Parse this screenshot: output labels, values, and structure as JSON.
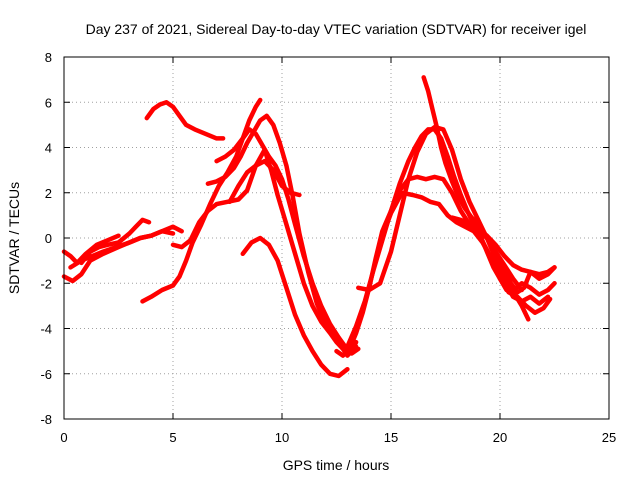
{
  "chart_data": {
    "type": "scatter",
    "title": "Day 237 of 2021, Sidereal Day-to-day VTEC variation (SDTVAR) for receiver igel",
    "xlabel": "GPS time / hours",
    "ylabel": "SDTVAR / TECUs",
    "xlim": [
      0,
      25
    ],
    "ylim": [
      -8,
      8
    ],
    "xticks": [
      0,
      5,
      10,
      15,
      20,
      25
    ],
    "yticks": [
      -8,
      -6,
      -4,
      -2,
      0,
      2,
      4,
      6,
      8
    ],
    "xtick_labels": [
      "0",
      "5",
      "10",
      "15",
      "20",
      "25"
    ],
    "ytick_labels": [
      "-8",
      "-6",
      "-4",
      "-2",
      "0",
      "2",
      "4",
      "6",
      "8"
    ],
    "grid": true,
    "marker_color": "#ff0000",
    "series": [
      {
        "name": "track-1",
        "x": [
          0.0,
          0.3,
          0.6,
          1.0,
          1.5,
          2.0,
          2.5
        ],
        "y": [
          -0.6,
          -0.8,
          -1.1,
          -0.7,
          -0.3,
          -0.1,
          0.1
        ]
      },
      {
        "name": "track-2",
        "x": [
          0.0,
          0.4,
          0.8,
          1.2,
          1.8,
          2.5,
          3.0,
          3.5,
          4.0,
          4.5,
          5.0,
          5.4
        ],
        "y": [
          -1.7,
          -1.9,
          -1.6,
          -1.0,
          -0.7,
          -0.4,
          -0.2,
          0.0,
          0.1,
          0.3,
          0.5,
          0.3
        ]
      },
      {
        "name": "track-3",
        "x": [
          0.8,
          1.2,
          1.6,
          2.0,
          2.5,
          3.0,
          3.3,
          3.6,
          3.9
        ],
        "y": [
          -1.1,
          -0.6,
          -0.4,
          -0.3,
          -0.2,
          0.2,
          0.5,
          0.8,
          0.7
        ]
      },
      {
        "name": "track-4",
        "x": [
          0.3,
          0.8,
          1.3,
          1.8,
          2.4,
          3.0,
          3.5,
          4.0,
          4.5,
          5.0
        ],
        "y": [
          -1.3,
          -1.0,
          -0.8,
          -0.6,
          -0.4,
          -0.2,
          0.0,
          0.1,
          0.3,
          0.2
        ]
      },
      {
        "name": "track-5",
        "x": [
          3.8,
          4.1,
          4.4,
          4.7,
          5.0,
          5.3,
          5.6,
          6.0,
          6.5,
          7.0,
          7.3
        ],
        "y": [
          5.3,
          5.7,
          5.9,
          6.0,
          5.8,
          5.4,
          5.0,
          4.8,
          4.6,
          4.4,
          4.4
        ]
      },
      {
        "name": "track-6",
        "x": [
          3.6,
          4.0,
          4.5,
          5.0,
          5.3,
          5.6,
          5.9,
          6.3,
          6.7,
          7.1,
          7.5,
          7.9,
          8.2,
          8.5,
          8.8,
          9.0
        ],
        "y": [
          -2.8,
          -2.6,
          -2.3,
          -2.1,
          -1.7,
          -1.0,
          -0.2,
          0.6,
          1.5,
          2.3,
          2.9,
          3.6,
          4.4,
          5.2,
          5.8,
          6.1
        ]
      },
      {
        "name": "track-7",
        "x": [
          5.0,
          5.4,
          5.8,
          6.2,
          6.6,
          7.0,
          7.5,
          8.0,
          8.4,
          8.8,
          9.2,
          9.5,
          9.8,
          10.2,
          10.6,
          11.0,
          11.4,
          11.8,
          12.2,
          12.5,
          12.8,
          13.0,
          13.2,
          13.4
        ],
        "y": [
          -0.3,
          -0.4,
          -0.1,
          0.7,
          1.2,
          1.5,
          1.6,
          1.7,
          2.1,
          3.2,
          3.9,
          3.0,
          1.9,
          0.6,
          -0.7,
          -2.0,
          -3.0,
          -3.7,
          -4.2,
          -4.6,
          -4.9,
          -5.2,
          -5.0,
          -4.6
        ]
      },
      {
        "name": "track-8",
        "x": [
          6.6,
          7.0,
          7.4,
          7.8,
          8.1,
          8.4,
          8.7,
          9.0,
          9.3,
          9.6,
          9.9,
          10.2,
          10.5,
          10.8,
          11.2,
          11.6,
          12.0,
          12.4,
          12.8,
          13.1,
          13.4
        ],
        "y": [
          2.4,
          2.5,
          2.7,
          3.1,
          3.6,
          4.2,
          4.7,
          5.2,
          5.4,
          5.0,
          4.2,
          3.2,
          1.8,
          0.2,
          -1.5,
          -2.9,
          -3.8,
          -4.4,
          -4.9,
          -5.0,
          -4.8
        ]
      },
      {
        "name": "track-9",
        "x": [
          7.0,
          7.4,
          7.8,
          8.2,
          8.5,
          8.8,
          9.1,
          9.4,
          9.7,
          10.0,
          10.3,
          10.6,
          11.0,
          11.4,
          11.8,
          12.2,
          12.6,
          12.9,
          13.2,
          13.5
        ],
        "y": [
          3.4,
          3.6,
          3.9,
          4.4,
          4.8,
          4.6,
          4.1,
          3.6,
          3.2,
          2.6,
          1.7,
          0.6,
          -0.8,
          -2.0,
          -3.0,
          -3.8,
          -4.4,
          -4.8,
          -5.1,
          -4.9
        ]
      },
      {
        "name": "track-10",
        "x": [
          7.6,
          8.0,
          8.4,
          8.8,
          9.2,
          9.6,
          10.0,
          10.4,
          10.8
        ],
        "y": [
          1.6,
          2.3,
          2.9,
          3.2,
          3.4,
          3.0,
          2.3,
          2.0,
          1.9
        ]
      },
      {
        "name": "track-11",
        "x": [
          8.2,
          8.6,
          9.0,
          9.4,
          9.8,
          10.2,
          10.6,
          11.0,
          11.4,
          11.8,
          12.2,
          12.6,
          13.0
        ],
        "y": [
          -0.7,
          -0.2,
          0.0,
          -0.3,
          -1.0,
          -2.2,
          -3.4,
          -4.3,
          -5.0,
          -5.6,
          -6.0,
          -6.1,
          -5.8
        ]
      },
      {
        "name": "track-12",
        "x": [
          12.5,
          12.8,
          13.1,
          13.4,
          13.7,
          14.0,
          14.3,
          14.6,
          15.0,
          15.4,
          15.8,
          16.2,
          16.6,
          17.0,
          17.4,
          17.8,
          18.2,
          18.6,
          19.0,
          19.4,
          19.8,
          20.2,
          20.6,
          21.0,
          21.4,
          21.8,
          22.2,
          22.5
        ],
        "y": [
          -5.0,
          -5.2,
          -4.9,
          -4.2,
          -3.3,
          -2.2,
          -0.9,
          0.3,
          1.2,
          2.1,
          2.6,
          2.7,
          2.6,
          2.7,
          2.6,
          2.0,
          1.2,
          0.6,
          0.4,
          0.1,
          -0.3,
          -0.8,
          -1.2,
          -1.4,
          -1.5,
          -1.8,
          -1.6,
          -1.3
        ]
      },
      {
        "name": "track-13",
        "x": [
          13.0,
          13.4,
          13.8,
          14.2,
          14.6,
          15.0,
          15.4,
          15.8,
          16.1,
          16.4,
          16.7,
          17.0,
          17.3,
          17.6,
          17.9,
          18.2,
          18.5,
          18.8,
          19.1,
          19.4,
          19.7,
          20.0,
          20.3,
          20.6,
          21.0,
          21.4,
          21.8,
          22.2,
          22.5
        ],
        "y": [
          -4.8,
          -3.9,
          -2.8,
          -1.4,
          -0.1,
          1.2,
          2.4,
          3.4,
          4.0,
          4.5,
          4.8,
          4.8,
          4.4,
          3.6,
          2.7,
          1.9,
          1.2,
          0.6,
          0.1,
          -0.6,
          -1.3,
          -1.8,
          -2.3,
          -2.3,
          -2.0,
          -2.2,
          -2.5,
          -2.3,
          -2.0
        ]
      },
      {
        "name": "track-14",
        "x": [
          13.5,
          14.0,
          14.5,
          15.0,
          15.4,
          15.8,
          16.2,
          16.6,
          17.0,
          17.4,
          17.8,
          18.2,
          18.6,
          19.0,
          19.4,
          19.8,
          20.2,
          20.6,
          21.0,
          21.4,
          21.8,
          22.2
        ],
        "y": [
          -2.2,
          -2.3,
          -2.0,
          -0.6,
          1.0,
          2.6,
          3.8,
          4.6,
          4.9,
          4.8,
          3.9,
          2.6,
          1.6,
          0.8,
          0.0,
          -0.9,
          -1.9,
          -2.6,
          -2.8,
          -2.6,
          -2.9,
          -2.6
        ]
      },
      {
        "name": "track-15",
        "x": [
          14.5,
          15.0,
          15.5,
          16.0,
          16.4,
          16.8,
          17.2,
          17.6,
          18.0,
          18.4,
          18.8,
          19.2,
          19.6,
          20.0,
          20.4,
          20.8,
          21.2,
          21.6,
          22.0,
          22.3
        ],
        "y": [
          -0.2,
          1.1,
          2.0,
          1.9,
          1.8,
          1.6,
          1.5,
          1.0,
          0.7,
          0.5,
          0.3,
          -0.2,
          -0.9,
          -1.8,
          -2.4,
          -2.6,
          -3.0,
          -3.3,
          -3.1,
          -2.7
        ]
      },
      {
        "name": "track-16",
        "x": [
          16.5,
          16.7,
          16.9,
          17.1,
          17.3,
          17.5,
          17.8,
          18.1,
          18.4,
          18.7,
          19.0,
          19.3,
          19.6,
          19.9,
          20.2,
          20.5,
          20.8,
          21.1,
          21.4,
          21.8,
          22.2,
          22.5
        ],
        "y": [
          7.1,
          6.5,
          5.7,
          4.9,
          4.0,
          3.3,
          2.5,
          1.8,
          1.3,
          0.9,
          0.6,
          0.2,
          -0.3,
          -1.0,
          -1.5,
          -2.0,
          -2.4,
          -2.2,
          -1.5,
          -1.6,
          -1.5,
          -1.3
        ]
      },
      {
        "name": "track-17",
        "x": [
          17.8,
          18.2,
          18.6,
          19.0,
          19.4,
          19.8,
          20.2,
          20.6,
          21.0
        ],
        "y": [
          0.9,
          0.8,
          0.6,
          0.3,
          0.0,
          -0.6,
          -1.2,
          -1.8,
          -2.3
        ]
      },
      {
        "name": "track-18",
        "x": [
          18.5,
          19.0,
          19.5,
          20.0,
          20.5,
          21.0,
          21.3
        ],
        "y": [
          0.7,
          0.2,
          -0.7,
          -1.5,
          -2.2,
          -3.0,
          -3.6
        ]
      }
    ]
  }
}
